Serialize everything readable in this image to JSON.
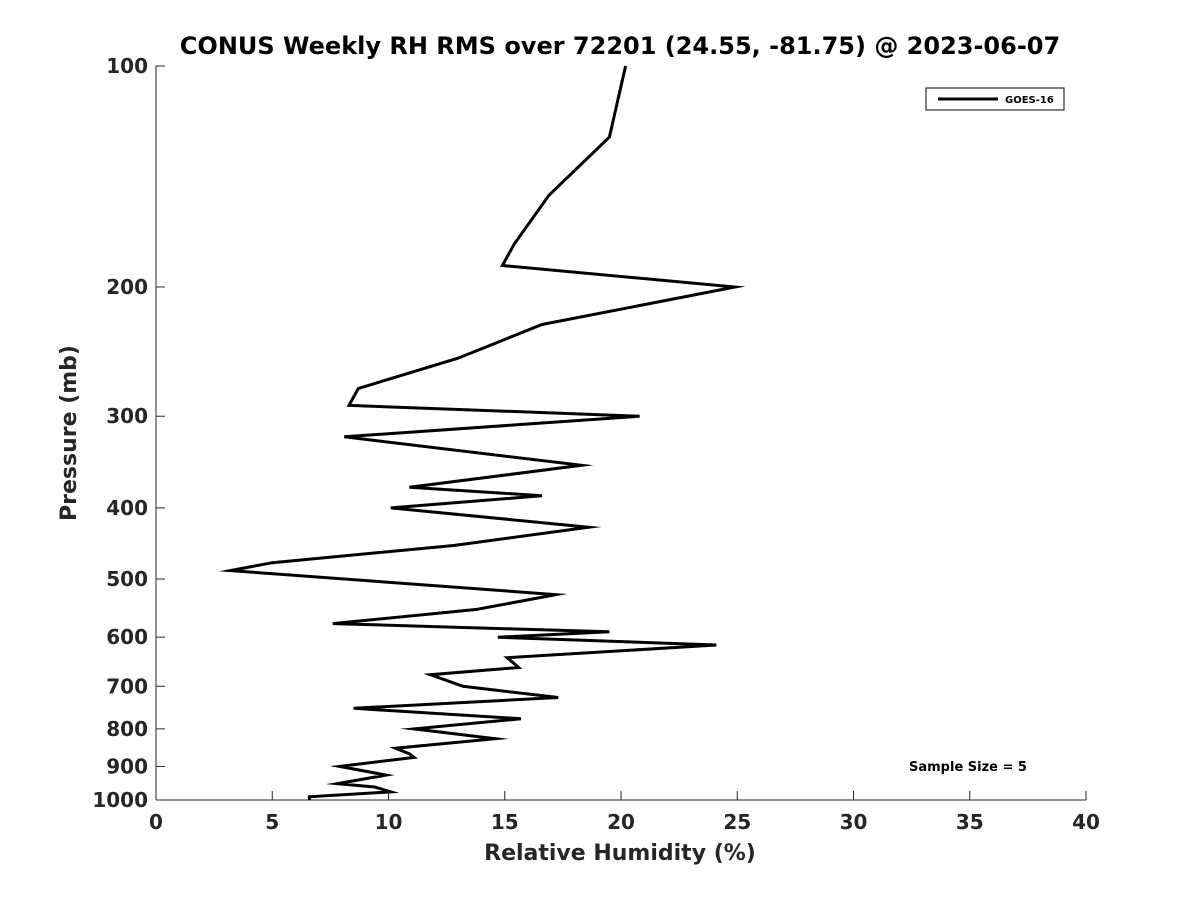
{
  "chart_data": {
    "type": "line",
    "title": "CONUS Weekly RH RMS over 72201 (24.55, -81.75) @ 2023-06-07",
    "xlabel": "Relative Humidity (%)",
    "ylabel": "Pressure (mb)",
    "xlim": [
      0,
      40
    ],
    "ylim": [
      100,
      1000
    ],
    "y_scale": "log",
    "y_reversed": true,
    "x_ticks": [
      "0",
      "5",
      "10",
      "15",
      "20",
      "25",
      "30",
      "35",
      "40"
    ],
    "y_ticks": [
      "100",
      "200",
      "300",
      "400",
      "500",
      "600",
      "700",
      "800",
      "900",
      "1000"
    ],
    "grid": false,
    "legend_position": "top-right",
    "annotation": "Sample Size = 5",
    "series": [
      {
        "name": "GOES-16",
        "color": "#000000",
        "x": [
          20.2,
          19.5,
          16.9,
          15.4,
          14.9,
          24.9,
          16.6,
          13.0,
          8.7,
          8.3,
          20.8,
          8.1,
          18.3,
          10.9,
          16.6,
          10.1,
          18.6,
          12.8,
          5.0,
          3.2,
          17.2,
          13.8,
          7.6,
          19.5,
          14.7,
          24.1,
          15.1,
          15.6,
          11.8,
          13.2,
          17.3,
          8.5,
          15.7,
          11.1,
          14.6,
          10.3,
          10.9,
          11.1,
          7.9,
          9.9,
          7.8,
          9.4,
          10.1,
          6.6,
          6.6
        ],
        "y": [
          100,
          125,
          150,
          175,
          187,
          200,
          225,
          250,
          275,
          290,
          300,
          320,
          350,
          375,
          385,
          400,
          425,
          450,
          475,
          487,
          525,
          550,
          575,
          590,
          600,
          615,
          640,
          660,
          675,
          700,
          725,
          750,
          775,
          800,
          825,
          850,
          865,
          875,
          900,
          925,
          950,
          960,
          975,
          990,
          1000
        ]
      }
    ]
  }
}
